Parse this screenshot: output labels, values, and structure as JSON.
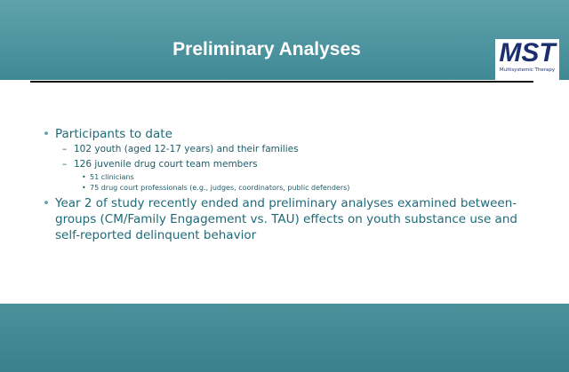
{
  "header": {
    "title": "Preliminary Analyses",
    "logo": {
      "text": "MST",
      "subtitle": "Multisystemic Therapy"
    }
  },
  "bullets": [
    {
      "text": "Participants to date",
      "items": [
        {
          "text": "102 youth (aged 12-17 years) and their families",
          "items": []
        },
        {
          "text": "126 juvenile drug court team members",
          "items": [
            {
              "text": "51 clinicians"
            },
            {
              "text": "75 drug court professionals (e.g., judges, coordinators, public defenders)"
            }
          ]
        }
      ]
    },
    {
      "text": "Year 2 of study recently ended and preliminary analyses examined between-groups (CM/Family Engagement vs. TAU) effects on youth substance use and self-reported delinquent behavior",
      "items": []
    }
  ]
}
